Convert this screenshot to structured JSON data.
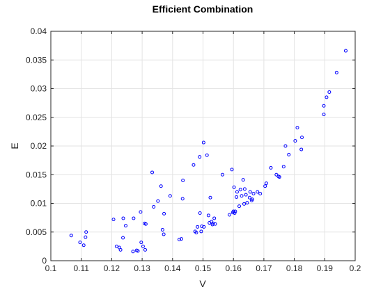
{
  "chart_data": {
    "type": "scatter",
    "title": "Efficient Combination",
    "xlabel": "V",
    "ylabel": "E",
    "xlim": [
      0.1,
      0.2
    ],
    "ylim": [
      0,
      0.04
    ],
    "xticks": [
      "0.1",
      "0.11",
      "0.12",
      "0.13",
      "0.14",
      "0.15",
      "0.16",
      "0.17",
      "0.18",
      "0.19",
      "0.2"
    ],
    "yticks": [
      "0",
      "0.005",
      "0.01",
      "0.015",
      "0.02",
      "0.025",
      "0.03",
      "0.035",
      "0.04"
    ],
    "grid": true,
    "marker": "circle-open",
    "point_color": "#0000ff",
    "series": [
      {
        "x": [
          0.1067,
          0.1096,
          0.1108,
          0.1114,
          0.1116,
          0.1206,
          0.1216,
          0.1225,
          0.1229,
          0.1237,
          0.1238,
          0.1246,
          0.127,
          0.1272,
          0.1282,
          0.1286,
          0.1295,
          0.1297,
          0.1303,
          0.1308,
          0.131,
          0.1312,
          0.1333,
          0.1338,
          0.1352,
          0.1362,
          0.1367,
          0.1371,
          0.1372,
          0.1392,
          0.1422,
          0.1429,
          0.1433,
          0.1434,
          0.1469,
          0.1474,
          0.1478,
          0.1482,
          0.1489,
          0.149,
          0.1494,
          0.1496,
          0.1502,
          0.1503,
          0.1513,
          0.1518,
          0.1521,
          0.1524,
          0.1528,
          0.1531,
          0.1533,
          0.1537,
          0.154,
          0.1564,
          0.1587,
          0.1595,
          0.1598,
          0.16,
          0.1602,
          0.1604,
          0.1606,
          0.161,
          0.1612,
          0.1619,
          0.1623,
          0.1627,
          0.1632,
          0.1635,
          0.1637,
          0.1641,
          0.1645,
          0.1653,
          0.1655,
          0.166,
          0.1662,
          0.1666,
          0.1679,
          0.1688,
          0.1704,
          0.1708,
          0.1723,
          0.1741,
          0.1748,
          0.1751,
          0.1765,
          0.1771,
          0.1782,
          0.1803,
          0.181,
          0.1823,
          0.1825,
          0.1897,
          0.1897,
          0.1906,
          0.1915,
          0.1939,
          0.1969
        ],
        "y": [
          0.0044,
          0.0032,
          0.0027,
          0.0041,
          0.005,
          0.0072,
          0.0025,
          0.0023,
          0.0019,
          0.004,
          0.0074,
          0.0061,
          0.0016,
          0.0074,
          0.0018,
          0.0017,
          0.0085,
          0.0032,
          0.0025,
          0.0065,
          0.0019,
          0.0064,
          0.0154,
          0.0094,
          0.0104,
          0.013,
          0.0054,
          0.0046,
          0.0082,
          0.0113,
          0.0037,
          0.0038,
          0.0108,
          0.014,
          0.0167,
          0.0051,
          0.0049,
          0.0059,
          0.0181,
          0.0083,
          0.0051,
          0.006,
          0.0206,
          0.0059,
          0.0184,
          0.0079,
          0.0066,
          0.011,
          0.0068,
          0.0063,
          0.0065,
          0.0074,
          0.0064,
          0.015,
          0.008,
          0.0159,
          0.0084,
          0.0086,
          0.0128,
          0.0083,
          0.0086,
          0.0111,
          0.012,
          0.0095,
          0.0124,
          0.0113,
          0.0141,
          0.0099,
          0.0125,
          0.0115,
          0.0101,
          0.011,
          0.012,
          0.0105,
          0.0107,
          0.0117,
          0.012,
          0.0117,
          0.013,
          0.0135,
          0.0162,
          0.015,
          0.0147,
          0.0146,
          0.0164,
          0.02,
          0.0185,
          0.0209,
          0.0232,
          0.0194,
          0.0215,
          0.0255,
          0.027,
          0.0285,
          0.0294,
          0.0328,
          0.0366
        ]
      }
    ]
  }
}
